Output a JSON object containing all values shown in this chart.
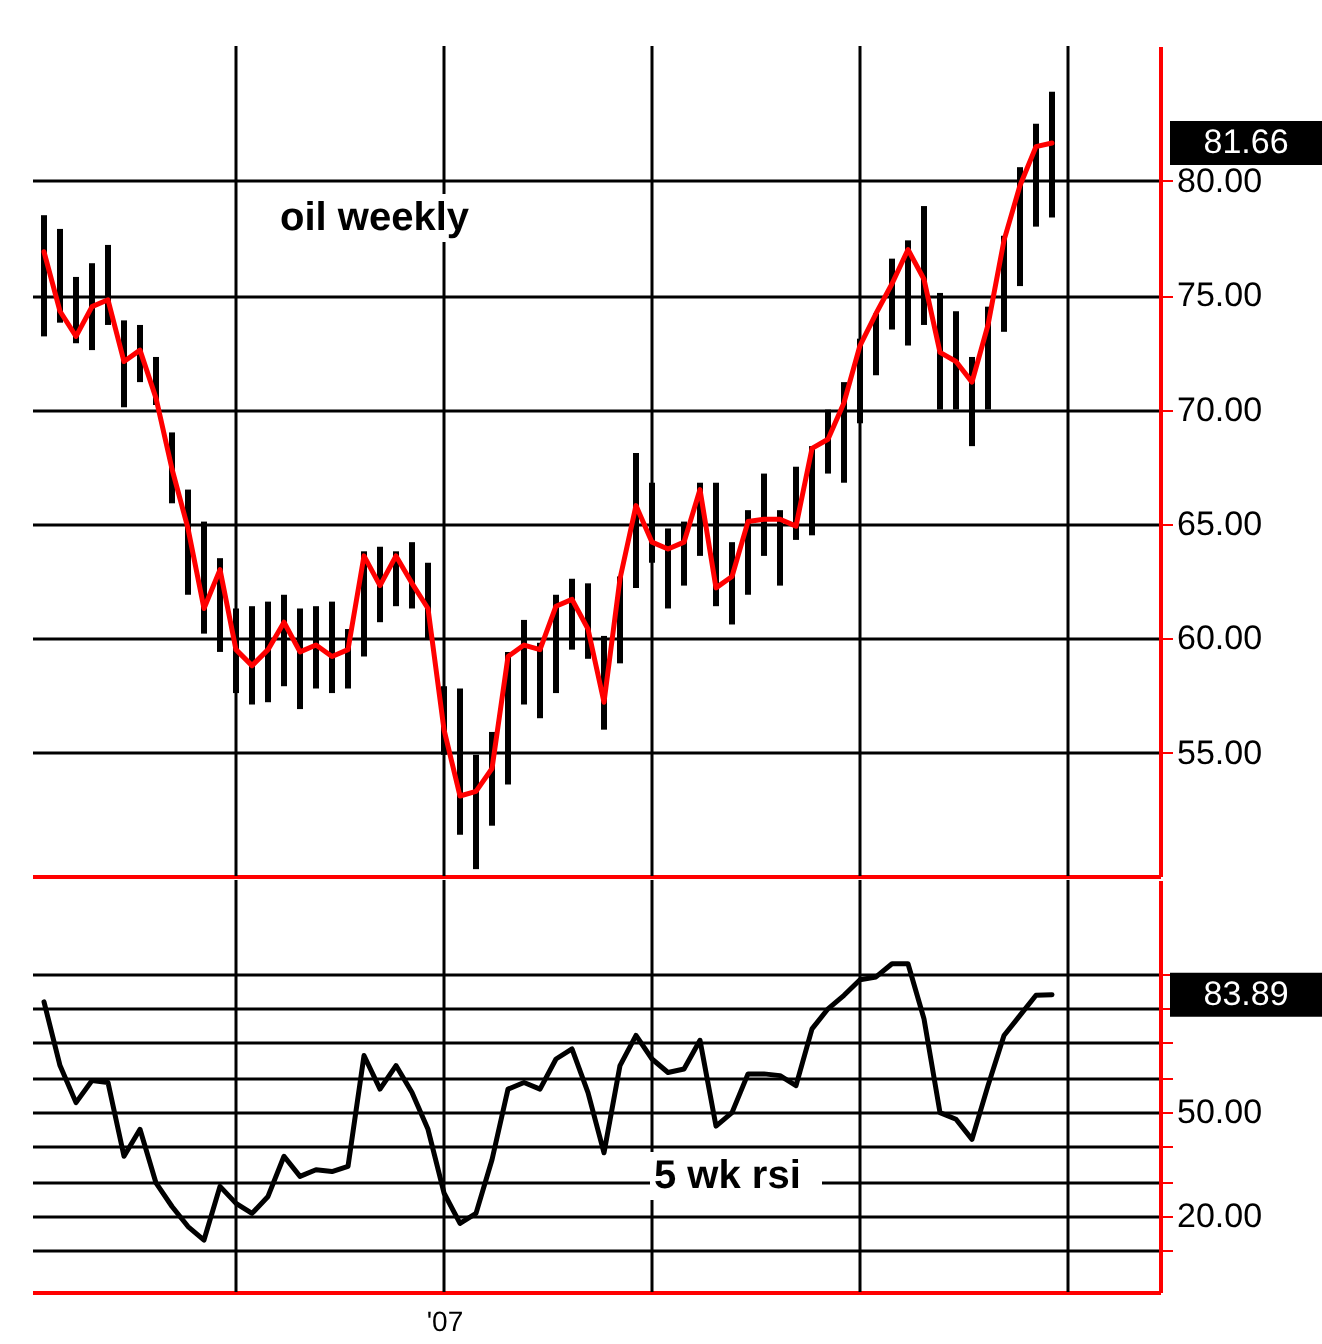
{
  "chart_data": [
    {
      "type": "line",
      "categories": [
        null,
        null,
        null,
        null,
        null,
        null,
        null,
        null,
        null,
        null,
        null,
        null,
        null,
        null,
        null,
        null,
        null,
        null,
        null,
        null,
        null,
        null,
        null,
        null,
        null,
        null,
        null,
        null,
        null,
        null,
        null,
        null,
        null,
        null,
        null,
        null,
        null,
        null,
        null,
        null,
        null,
        null,
        null,
        null,
        null,
        null,
        null,
        null,
        null,
        null,
        null,
        null,
        null,
        null,
        null,
        null,
        null,
        null,
        null,
        null,
        null,
        null,
        null,
        null
      ],
      "series": [
        {
          "color": "#ff0000",
          "values": [
            76.9,
            74.3,
            73.2,
            74.5,
            74.8,
            72.1,
            72.6,
            70.5,
            67.4,
            64.8,
            61.3,
            63.0,
            59.5,
            58.8,
            59.5,
            60.7,
            59.4,
            59.7,
            59.2,
            59.5,
            63.6,
            62.3,
            63.6,
            62.4,
            61.3,
            56.0,
            53.1,
            53.3,
            54.3,
            59.2,
            59.7,
            59.5,
            61.4,
            61.7,
            60.4,
            57.2,
            62.6,
            65.8,
            64.2,
            63.9,
            64.2,
            66.5,
            62.2,
            62.7,
            65.1,
            65.2,
            65.2,
            64.9,
            68.3,
            68.7,
            70.3,
            72.8,
            74.2,
            75.5,
            77.0,
            75.7,
            72.5,
            72.1,
            71.2,
            73.7,
            77.4,
            79.8,
            81.5,
            81.66
          ],
          "errors": [
            [
              73.2,
              78.5
            ],
            [
              73.8,
              77.9
            ],
            [
              72.9,
              75.8
            ],
            [
              72.6,
              76.4
            ],
            [
              73.7,
              77.2
            ],
            [
              70.1,
              73.9
            ],
            [
              71.2,
              73.7
            ],
            [
              70.2,
              72.3
            ],
            [
              65.9,
              69.0
            ],
            [
              61.9,
              66.5
            ],
            [
              60.2,
              65.1
            ],
            [
              59.4,
              63.5
            ],
            [
              57.6,
              61.3
            ],
            [
              57.1,
              61.4
            ],
            [
              57.2,
              61.6
            ],
            [
              57.9,
              61.9
            ],
            [
              56.9,
              61.3
            ],
            [
              57.8,
              61.4
            ],
            [
              57.6,
              61.6
            ],
            [
              57.8,
              60.4
            ],
            [
              59.2,
              63.8
            ],
            [
              60.7,
              64.0
            ],
            [
              61.4,
              63.8
            ],
            [
              61.3,
              64.2
            ],
            [
              60.0,
              63.3
            ],
            [
              54.9,
              57.9
            ],
            [
              51.4,
              57.8
            ],
            [
              49.9,
              54.9
            ],
            [
              51.8,
              55.9
            ],
            [
              53.6,
              59.4
            ],
            [
              57.1,
              60.8
            ],
            [
              56.5,
              59.8
            ],
            [
              57.6,
              61.9
            ],
            [
              59.5,
              62.6
            ],
            [
              59.1,
              62.4
            ],
            [
              56.0,
              60.1
            ],
            [
              58.9,
              62.7
            ],
            [
              62.2,
              68.1
            ],
            [
              63.3,
              66.8
            ],
            [
              61.3,
              64.8
            ],
            [
              62.3,
              65.1
            ],
            [
              63.6,
              66.8
            ],
            [
              61.4,
              66.8
            ],
            [
              60.6,
              64.2
            ],
            [
              61.9,
              65.6
            ],
            [
              63.6,
              67.2
            ],
            [
              62.3,
              65.6
            ],
            [
              64.3,
              67.5
            ],
            [
              64.5,
              68.4
            ],
            [
              67.2,
              70.0
            ],
            [
              66.8,
              71.2
            ],
            [
              69.4,
              73.1
            ],
            [
              71.5,
              74.2
            ],
            [
              73.5,
              76.6
            ],
            [
              72.8,
              77.4
            ],
            [
              73.7,
              78.9
            ],
            [
              70.0,
              75.1
            ],
            [
              70.0,
              74.3
            ],
            [
              68.4,
              72.3
            ],
            [
              70.0,
              74.5
            ],
            [
              73.4,
              77.6
            ],
            [
              75.4,
              80.6
            ],
            [
              78.0,
              82.5
            ],
            [
              78.4,
              83.9
            ]
          ]
        }
      ],
      "ylim": [
        49.6,
        85.9
      ],
      "yticks": [
        {
          "value": 55,
          "label": "55.00"
        },
        {
          "value": 60,
          "label": "60.00"
        },
        {
          "value": 65,
          "label": "65.00"
        },
        {
          "value": 70,
          "label": "70.00"
        },
        {
          "value": 75,
          "label": "75.00"
        },
        {
          "value": 80,
          "label": "80.00"
        }
      ],
      "grid": true,
      "tick_labels": "y",
      "annotations": [
        "oil weekly",
        "81.66"
      ]
    },
    {
      "type": "line",
      "categories": [
        null,
        null,
        null,
        null,
        null,
        null,
        null,
        null,
        null,
        null,
        null,
        null,
        null,
        null,
        null,
        null,
        null,
        null,
        null,
        null,
        null,
        null,
        null,
        null,
        null,
        "'07",
        null,
        null,
        null,
        null,
        null,
        null,
        null,
        null,
        null,
        null,
        null,
        null,
        null,
        null,
        null,
        null,
        null,
        null,
        null,
        null,
        null,
        null,
        null,
        null,
        null,
        null,
        null,
        null,
        null,
        null,
        null,
        null,
        null,
        null,
        null,
        null,
        null,
        null
      ],
      "series": [
        {
          "color": "#000000",
          "values": [
            81.8,
            63.4,
            52.7,
            59.1,
            58.5,
            37.2,
            45.0,
            29.5,
            22.7,
            16.9,
            13.0,
            28.5,
            23.6,
            20.7,
            25.6,
            37.2,
            31.4,
            33.3,
            32.8,
            34.3,
            66.3,
            56.6,
            63.4,
            55.6,
            45.0,
            26.6,
            17.8,
            20.7,
            36.2,
            56.6,
            58.5,
            56.6,
            65.3,
            68.2,
            55.6,
            38.2,
            63.4,
            72.1,
            65.3,
            61.4,
            62.4,
            70.7,
            45.9,
            49.8,
            61.0,
            61.0,
            60.5,
            57.6,
            74.0,
            79.8,
            83.7,
            88.2,
            89.0,
            92.8,
            92.8,
            76.9,
            49.8,
            47.9,
            42.1,
            57.6,
            72.1,
            77.9,
            83.7,
            83.89
          ]
        }
      ],
      "ylim": [
        -2,
        117
      ],
      "yticks": [
        {
          "value": 10,
          "label": null
        },
        {
          "value": 20,
          "label": "20.00"
        },
        {
          "value": 30,
          "label": null
        },
        {
          "value": 40,
          "label": null
        },
        {
          "value": 50,
          "label": "50.00"
        },
        {
          "value": 60,
          "label": null
        },
        {
          "value": 70,
          "label": null
        },
        {
          "value": 80,
          "label": null
        },
        {
          "value": 90,
          "label": null
        }
      ],
      "grid": true,
      "annotations": [
        "5 wk rsi",
        "83.89"
      ]
    }
  ]
}
